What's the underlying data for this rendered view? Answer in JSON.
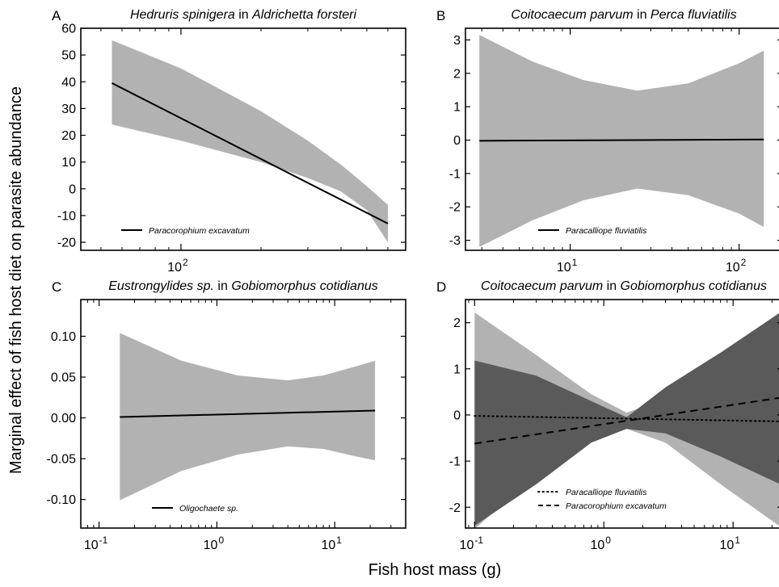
{
  "figure": {
    "ylabel": "Marginal effect of fish host diet on parasite abundance",
    "xlabel": "Fish host mass (g)"
  },
  "colors": {
    "band_light": "#b2b2b2",
    "band_dark": "#5a5a5a",
    "line": "#000000"
  },
  "chart_data": [
    {
      "panel": "A",
      "type": "area",
      "title_parts": [
        {
          "text": "Hedruris spinigera",
          "italic": true
        },
        {
          "text": " in ",
          "italic": false
        },
        {
          "text": "Aldrichetta forsteri",
          "italic": true
        }
      ],
      "xscale": "log",
      "xlim": [
        42,
        700
      ],
      "xticks": [
        {
          "v": 100,
          "base": "10",
          "exp": "2"
        }
      ],
      "ylim": [
        -23,
        60
      ],
      "yticks": [
        60,
        50,
        40,
        30,
        20,
        10,
        0,
        -10,
        -20
      ],
      "series": [
        {
          "name": "Paracorophium excavatum",
          "style": "solid",
          "band_color": "light",
          "x": [
            55,
            600
          ],
          "y": [
            39.5,
            -13
          ],
          "lower": [
            [
              55,
              24
            ],
            [
              100,
              18
            ],
            [
              200,
              10
            ],
            [
              300,
              4
            ],
            [
              400,
              -1
            ],
            [
              500,
              -8
            ],
            [
              600,
              -20
            ]
          ],
          "upper": [
            [
              55,
              55.5
            ],
            [
              100,
              45
            ],
            [
              200,
              29
            ],
            [
              300,
              18
            ],
            [
              400,
              9
            ],
            [
              500,
              1
            ],
            [
              600,
              -6
            ]
          ]
        }
      ],
      "legend_position": "bottom-left"
    },
    {
      "panel": "B",
      "type": "area",
      "title_parts": [
        {
          "text": "Coitocaecum parvum",
          "italic": true
        },
        {
          "text": " in ",
          "italic": false
        },
        {
          "text": "Perca fluviatilis",
          "italic": true
        }
      ],
      "xscale": "log",
      "xlim": [
        2.4,
        180
      ],
      "xticks": [
        {
          "v": 10,
          "base": "10",
          "exp": "1"
        },
        {
          "v": 100,
          "base": "10",
          "exp": "2"
        }
      ],
      "ylim": [
        -3.3,
        3.35
      ],
      "yticks": [
        3,
        2,
        1,
        0,
        -1,
        -2,
        -3
      ],
      "series": [
        {
          "name": "Paracalliope fluviatilis",
          "style": "solid",
          "band_color": "light",
          "x": [
            2.9,
            140
          ],
          "y": [
            -0.02,
            0.02
          ],
          "lower": [
            [
              2.9,
              -3.2
            ],
            [
              6,
              -2.4
            ],
            [
              12,
              -1.8
            ],
            [
              25,
              -1.45
            ],
            [
              50,
              -1.65
            ],
            [
              100,
              -2.2
            ],
            [
              140,
              -2.6
            ]
          ],
          "upper": [
            [
              2.9,
              3.15
            ],
            [
              6,
              2.35
            ],
            [
              12,
              1.8
            ],
            [
              25,
              1.48
            ],
            [
              50,
              1.7
            ],
            [
              100,
              2.3
            ],
            [
              140,
              2.68
            ]
          ]
        }
      ],
      "legend_position": "bottom-left"
    },
    {
      "panel": "C",
      "type": "area",
      "title_parts": [
        {
          "text": "Eustrongylides sp.",
          "italic": true
        },
        {
          "text": " in ",
          "italic": false
        },
        {
          "text": "Gobiomorphus cotidianus",
          "italic": true
        }
      ],
      "xscale": "log",
      "xlim": [
        0.07,
        40
      ],
      "xticks": [
        {
          "v": 0.1,
          "base": "10",
          "exp": "-1"
        },
        {
          "v": 1,
          "base": "10",
          "exp": "0"
        },
        {
          "v": 10,
          "base": "10",
          "exp": "1"
        }
      ],
      "ylim": [
        -0.135,
        0.145
      ],
      "yticks": [
        0.1,
        0.05,
        0.0,
        -0.05,
        -0.1
      ],
      "ytick_labels": [
        "0.10",
        "0.05",
        "0.00",
        "-0.05",
        "-0.10"
      ],
      "series": [
        {
          "name": "Oligochaete sp.",
          "style": "solid",
          "band_color": "light",
          "x": [
            0.15,
            22
          ],
          "y": [
            0.001,
            0.009
          ],
          "lower": [
            [
              0.15,
              -0.101
            ],
            [
              0.5,
              -0.065
            ],
            [
              1.5,
              -0.045
            ],
            [
              4,
              -0.035
            ],
            [
              8,
              -0.038
            ],
            [
              15,
              -0.047
            ],
            [
              22,
              -0.052
            ]
          ],
          "upper": [
            [
              0.15,
              0.104
            ],
            [
              0.5,
              0.07
            ],
            [
              1.5,
              0.052
            ],
            [
              4,
              0.046
            ],
            [
              8,
              0.052
            ],
            [
              15,
              0.063
            ],
            [
              22,
              0.07
            ]
          ]
        }
      ],
      "legend_position": "bottom-left"
    },
    {
      "panel": "D",
      "type": "area",
      "title_parts": [
        {
          "text": "Coitocaecum parvum",
          "italic": true
        },
        {
          "text": " in ",
          "italic": false
        },
        {
          "text": "Gobiomorphus cotidianus",
          "italic": true
        }
      ],
      "xscale": "log",
      "xlim": [
        0.085,
        24
      ],
      "xticks": [
        {
          "v": 0.1,
          "base": "10",
          "exp": "-1"
        },
        {
          "v": 1,
          "base": "10",
          "exp": "0"
        },
        {
          "v": 10,
          "base": "10",
          "exp": "1"
        }
      ],
      "ylim": [
        -2.45,
        2.5
      ],
      "yticks": [
        2,
        1,
        0,
        -1,
        -2
      ],
      "series": [
        {
          "name": "Paracalliope fluviatilis",
          "style": "dotted",
          "band_color": "light",
          "x": [
            0.1,
            24
          ],
          "y": [
            -0.02,
            -0.14
          ],
          "lower": [
            [
              0.1,
              -2.47
            ],
            [
              0.3,
              -1.3
            ],
            [
              0.8,
              -0.55
            ],
            [
              1.5,
              -0.3
            ],
            [
              3,
              -0.6
            ],
            [
              8,
              -1.5
            ],
            [
              24,
              -2.45
            ]
          ],
          "upper": [
            [
              0.1,
              2.22
            ],
            [
              0.3,
              1.3
            ],
            [
              0.8,
              0.45
            ],
            [
              1.5,
              0.05
            ],
            [
              3,
              0.35
            ],
            [
              8,
              1.3
            ],
            [
              24,
              2.25
            ]
          ]
        },
        {
          "name": "Paracorophium excavatum",
          "style": "dashed",
          "band_color": "dark",
          "x": [
            0.1,
            24
          ],
          "y": [
            -0.62,
            0.38
          ],
          "lower": [
            [
              0.1,
              -2.4
            ],
            [
              0.3,
              -1.5
            ],
            [
              0.8,
              -0.6
            ],
            [
              1.5,
              -0.3
            ],
            [
              3,
              -0.4
            ],
            [
              8,
              -0.9
            ],
            [
              24,
              -1.52
            ]
          ],
          "upper": [
            [
              0.1,
              1.18
            ],
            [
              0.3,
              0.85
            ],
            [
              0.8,
              0.3
            ],
            [
              1.5,
              -0.05
            ],
            [
              3,
              0.6
            ],
            [
              8,
              1.35
            ],
            [
              24,
              2.25
            ]
          ]
        }
      ],
      "legend_position": "bottom-left"
    }
  ]
}
